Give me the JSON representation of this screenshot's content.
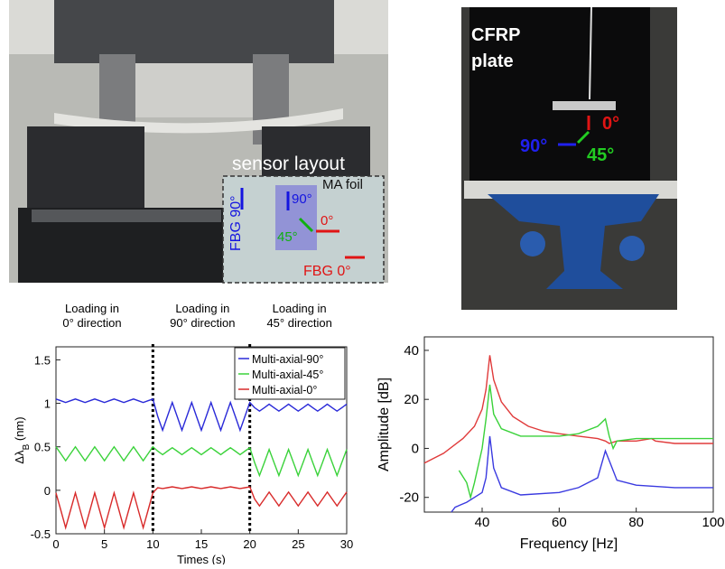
{
  "photos": {
    "left": {
      "caption": "sensor layout",
      "foil": "MA foil",
      "fbg90": "FBG 90°",
      "a90": "90°",
      "a45": "45°",
      "a0": "0°",
      "fbg0": "FBG 0°"
    },
    "right": {
      "line1": "CFRP",
      "line2": "plate",
      "a0": "0°",
      "a45": "45°",
      "a90": "90°"
    }
  },
  "chart_data": [
    {
      "type": "line",
      "annotations": [
        [
          "Loading in",
          "0° direction"
        ],
        [
          "Loading in",
          "90° direction"
        ],
        [
          "Loading in",
          "45° direction"
        ]
      ],
      "x_label": "Times (s)",
      "y_label": [
        "Δλ",
        "B",
        " (nm)"
      ],
      "x": [
        0,
        0.5,
        1,
        1.5,
        2,
        2.5,
        3,
        3.5,
        4,
        4.5,
        5,
        5.5,
        6,
        6.5,
        7,
        7.5,
        8,
        8.5,
        9,
        9.5,
        10,
        10.5,
        11,
        11.5,
        12,
        12.5,
        13,
        13.5,
        14,
        14.5,
        15,
        15.5,
        16,
        16.5,
        17,
        17.5,
        18,
        18.5,
        19,
        19.5,
        20,
        20.5,
        21,
        21.5,
        22,
        22.5,
        23,
        23.5,
        24,
        24.5,
        25,
        25.5,
        26,
        26.5,
        27,
        27.5,
        28,
        28.5,
        29,
        29.5,
        30
      ],
      "series": [
        {
          "name": "Multi-axial-90°",
          "color": "#2a2ad8",
          "values": [
            1.05,
            1.03,
            1.01,
            1.03,
            1.05,
            1.03,
            1.01,
            1.03,
            1.05,
            1.03,
            1.01,
            1.03,
            1.05,
            1.03,
            1.01,
            1.03,
            1.05,
            1.03,
            1.01,
            1.03,
            1.05,
            0.85,
            0.69,
            0.85,
            1.01,
            0.85,
            0.69,
            0.85,
            1.01,
            0.85,
            0.69,
            0.85,
            1.01,
            0.85,
            0.69,
            0.85,
            1.01,
            0.85,
            0.69,
            0.85,
            1.01,
            0.95,
            0.91,
            0.95,
            0.99,
            0.95,
            0.91,
            0.95,
            0.99,
            0.95,
            0.91,
            0.95,
            0.99,
            0.95,
            0.91,
            0.95,
            0.99,
            0.95,
            0.91,
            0.95,
            0.99
          ]
        },
        {
          "name": "Multi-axial-45°",
          "color": "#3ad23a",
          "values": [
            0.5,
            0.42,
            0.34,
            0.42,
            0.5,
            0.42,
            0.34,
            0.42,
            0.5,
            0.42,
            0.34,
            0.42,
            0.5,
            0.42,
            0.34,
            0.42,
            0.5,
            0.42,
            0.34,
            0.42,
            0.5,
            0.45,
            0.41,
            0.45,
            0.49,
            0.45,
            0.41,
            0.45,
            0.49,
            0.45,
            0.41,
            0.45,
            0.49,
            0.45,
            0.41,
            0.45,
            0.49,
            0.45,
            0.41,
            0.45,
            0.49,
            0.32,
            0.17,
            0.32,
            0.47,
            0.32,
            0.17,
            0.32,
            0.47,
            0.32,
            0.17,
            0.32,
            0.47,
            0.32,
            0.17,
            0.32,
            0.47,
            0.32,
            0.17,
            0.32,
            0.47
          ]
        },
        {
          "name": "Multi-axial-0°",
          "color": "#d82a2a",
          "values": [
            -0.03,
            -0.23,
            -0.43,
            -0.23,
            -0.03,
            -0.23,
            -0.43,
            -0.23,
            -0.03,
            -0.23,
            -0.43,
            -0.23,
            -0.03,
            -0.23,
            -0.43,
            -0.23,
            -0.03,
            -0.23,
            -0.43,
            -0.23,
            -0.03,
            0.03,
            0.02,
            0.03,
            0.04,
            0.03,
            0.02,
            0.03,
            0.04,
            0.03,
            0.02,
            0.03,
            0.04,
            0.03,
            0.02,
            0.03,
            0.04,
            0.03,
            0.02,
            0.03,
            0.04,
            -0.1,
            -0.18,
            -0.1,
            -0.02,
            -0.1,
            -0.18,
            -0.1,
            -0.02,
            -0.1,
            -0.18,
            -0.1,
            -0.02,
            -0.1,
            -0.18,
            -0.1,
            -0.02,
            -0.1,
            -0.18,
            -0.1,
            -0.02
          ]
        }
      ],
      "vlines": [
        10,
        20
      ],
      "xlim": [
        0,
        30
      ],
      "xticks": [
        0,
        5,
        10,
        15,
        20,
        25,
        30
      ],
      "ylim": [
        -0.5,
        1.65
      ],
      "yticks": [
        -0.5,
        0,
        0.5,
        1,
        1.5
      ],
      "legend": "top-right"
    },
    {
      "type": "line",
      "x_label": "Frequency [Hz]",
      "y_label": [
        "Amplitude [dB]"
      ],
      "series": [
        {
          "color": "#e03a3a",
          "x": [
            25,
            30,
            35,
            38,
            40,
            41,
            42,
            43,
            45,
            48,
            52,
            56,
            60,
            65,
            70,
            72,
            73,
            75,
            80,
            84,
            85,
            90,
            100
          ],
          "values": [
            -6,
            -2,
            4,
            9,
            16,
            24,
            38,
            28,
            19,
            13,
            9,
            7,
            6,
            5,
            4,
            3,
            2,
            3,
            3,
            4,
            3,
            2,
            2
          ]
        },
        {
          "color": "#3ad23a",
          "x": [
            34,
            36,
            37,
            38,
            40,
            41,
            42,
            43,
            45,
            50,
            60,
            65,
            70,
            72,
            73,
            74,
            75,
            80,
            100
          ],
          "values": [
            -9,
            -14,
            -20,
            -14,
            0,
            12,
            26,
            14,
            8,
            5,
            5,
            6,
            9,
            12,
            5,
            0,
            3,
            4,
            4
          ]
        },
        {
          "color": "#3a3ae0",
          "x": [
            32,
            33,
            36,
            38,
            40,
            41,
            42,
            43,
            45,
            50,
            60,
            65,
            70,
            72,
            73,
            75,
            80,
            90,
            100
          ],
          "values": [
            -26,
            -24,
            -22,
            -20,
            -18,
            -12,
            5,
            -8,
            -16,
            -19,
            -18,
            -16,
            -12,
            -1,
            -5,
            -13,
            -15,
            -16,
            -16
          ]
        }
      ],
      "xlim": [
        25,
        100
      ],
      "xticks": [
        40,
        60,
        80,
        100
      ],
      "ylim": [
        -26,
        45.5
      ],
      "yticks": [
        -20,
        0,
        20,
        40
      ]
    }
  ]
}
